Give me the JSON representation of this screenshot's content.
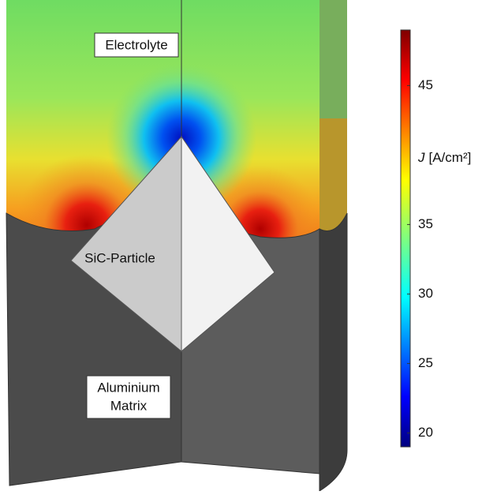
{
  "labels": {
    "electrolyte": "Electrolyte",
    "particle": "SiC-Particle",
    "matrix_line1": "Aluminium",
    "matrix_line2": "Matrix"
  },
  "colorbar": {
    "symbol": "J",
    "unit": "[A/cm²]",
    "lim": [
      19,
      49
    ],
    "ticks": [
      20,
      25,
      30,
      35,
      45
    ]
  }
}
